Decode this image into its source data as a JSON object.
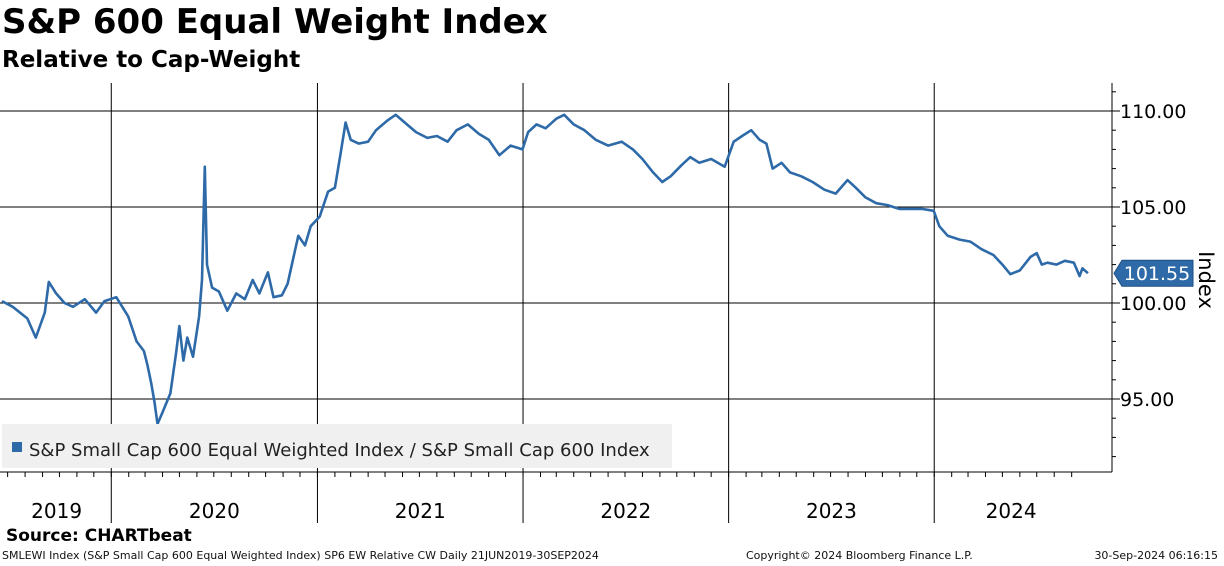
{
  "header": {
    "title": "S&P 600 Equal Weight Index",
    "subtitle": "Relative to Cap-Weight"
  },
  "footer": {
    "source": "Source: CHARTbeat",
    "description": "SMLEWI Index (S&P Small Cap 600 Equal Weighted Index) SP6 EW Relative CW  Daily 21JUN2019-30SEP2024",
    "copyright": "Copyright© 2024 Bloomberg Finance L.P.",
    "timestamp": "30-Sep-2024 06:16:15"
  },
  "colors": {
    "series": "#2e6aa8",
    "label_fill": "#2e6aa8",
    "legend_bg": "#f0f0f0"
  },
  "chart_data": {
    "type": "line",
    "ylabel": "Index",
    "ylim": [
      91,
      111.5
    ],
    "yticks": [
      95,
      100,
      105,
      110
    ],
    "ytick_labels": [
      "95.00",
      "100.00",
      "105.00",
      "110.00"
    ],
    "x_start": "2019-06-21",
    "x_end": "2024-09-30",
    "year_labels": [
      "2019",
      "2020",
      "2021",
      "2022",
      "2023",
      "2024"
    ],
    "grid": true,
    "legend_position": "bottom-left",
    "last_value_label": "101.55",
    "series": [
      {
        "name": "S&P Small Cap 600 Equal Weighted Index / S&P Small Cap 600 Index",
        "points": [
          [
            "2019-06-21",
            100.1
          ],
          [
            "2019-07-10",
            99.8
          ],
          [
            "2019-08-05",
            99.2
          ],
          [
            "2019-08-20",
            98.2
          ],
          [
            "2019-09-05",
            99.5
          ],
          [
            "2019-09-12",
            101.1
          ],
          [
            "2019-09-25",
            100.5
          ],
          [
            "2019-10-10",
            100.0
          ],
          [
            "2019-10-25",
            99.8
          ],
          [
            "2019-11-15",
            100.2
          ],
          [
            "2019-12-05",
            99.5
          ],
          [
            "2019-12-20",
            100.1
          ],
          [
            "2020-01-10",
            100.3
          ],
          [
            "2020-01-31",
            99.3
          ],
          [
            "2020-02-15",
            98.0
          ],
          [
            "2020-02-28",
            97.5
          ],
          [
            "2020-03-05",
            96.8
          ],
          [
            "2020-03-12",
            95.8
          ],
          [
            "2020-03-18",
            94.8
          ],
          [
            "2020-03-23",
            93.7
          ],
          [
            "2020-04-01",
            94.3
          ],
          [
            "2020-04-15",
            95.3
          ],
          [
            "2020-04-25",
            97.4
          ],
          [
            "2020-05-01",
            98.8
          ],
          [
            "2020-05-08",
            97.0
          ],
          [
            "2020-05-15",
            98.2
          ],
          [
            "2020-05-25",
            97.2
          ],
          [
            "2020-06-05",
            99.3
          ],
          [
            "2020-06-10",
            101.2
          ],
          [
            "2020-06-15",
            107.1
          ],
          [
            "2020-06-19",
            102.0
          ],
          [
            "2020-06-28",
            100.8
          ],
          [
            "2020-07-10",
            100.6
          ],
          [
            "2020-07-25",
            99.6
          ],
          [
            "2020-08-10",
            100.5
          ],
          [
            "2020-08-25",
            100.2
          ],
          [
            "2020-09-08",
            101.2
          ],
          [
            "2020-09-20",
            100.5
          ],
          [
            "2020-10-05",
            101.6
          ],
          [
            "2020-10-15",
            100.3
          ],
          [
            "2020-10-30",
            100.4
          ],
          [
            "2020-11-09",
            101.0
          ],
          [
            "2020-11-18",
            102.2
          ],
          [
            "2020-11-28",
            103.5
          ],
          [
            "2020-12-10",
            103.0
          ],
          [
            "2020-12-20",
            104.0
          ],
          [
            "2021-01-05",
            104.5
          ],
          [
            "2021-01-20",
            105.8
          ],
          [
            "2021-02-01",
            106.0
          ],
          [
            "2021-02-10",
            107.6
          ],
          [
            "2021-02-20",
            109.4
          ],
          [
            "2021-03-01",
            108.5
          ],
          [
            "2021-03-15",
            108.3
          ],
          [
            "2021-04-01",
            108.4
          ],
          [
            "2021-04-15",
            109.0
          ],
          [
            "2021-05-05",
            109.5
          ],
          [
            "2021-05-20",
            109.8
          ],
          [
            "2021-06-05",
            109.4
          ],
          [
            "2021-06-25",
            108.9
          ],
          [
            "2021-07-15",
            108.6
          ],
          [
            "2021-08-01",
            108.7
          ],
          [
            "2021-08-20",
            108.4
          ],
          [
            "2021-09-05",
            109.0
          ],
          [
            "2021-09-25",
            109.3
          ],
          [
            "2021-10-15",
            108.8
          ],
          [
            "2021-11-01",
            108.5
          ],
          [
            "2021-11-20",
            107.7
          ],
          [
            "2021-12-10",
            108.2
          ],
          [
            "2021-12-31",
            108.0
          ],
          [
            "2022-01-10",
            108.9
          ],
          [
            "2022-01-25",
            109.3
          ],
          [
            "2022-02-10",
            109.1
          ],
          [
            "2022-03-01",
            109.6
          ],
          [
            "2022-03-15",
            109.8
          ],
          [
            "2022-04-01",
            109.3
          ],
          [
            "2022-04-20",
            109.0
          ],
          [
            "2022-05-10",
            108.5
          ],
          [
            "2022-06-01",
            108.2
          ],
          [
            "2022-06-25",
            108.4
          ],
          [
            "2022-07-15",
            108.0
          ],
          [
            "2022-08-01",
            107.5
          ],
          [
            "2022-08-20",
            106.8
          ],
          [
            "2022-09-05",
            106.3
          ],
          [
            "2022-09-20",
            106.6
          ],
          [
            "2022-10-10",
            107.2
          ],
          [
            "2022-10-25",
            107.6
          ],
          [
            "2022-11-10",
            107.3
          ],
          [
            "2022-12-01",
            107.5
          ],
          [
            "2022-12-25",
            107.1
          ],
          [
            "2023-01-10",
            108.4
          ],
          [
            "2023-01-25",
            108.7
          ],
          [
            "2023-02-10",
            109.0
          ],
          [
            "2023-02-25",
            108.5
          ],
          [
            "2023-03-09",
            108.3
          ],
          [
            "2023-03-20",
            107.0
          ],
          [
            "2023-04-05",
            107.3
          ],
          [
            "2023-04-20",
            106.8
          ],
          [
            "2023-05-10",
            106.6
          ],
          [
            "2023-05-30",
            106.3
          ],
          [
            "2023-06-20",
            105.9
          ],
          [
            "2023-07-10",
            105.7
          ],
          [
            "2023-07-31",
            106.4
          ],
          [
            "2023-08-15",
            106.0
          ],
          [
            "2023-09-01",
            105.5
          ],
          [
            "2023-09-20",
            105.2
          ],
          [
            "2023-10-10",
            105.1
          ],
          [
            "2023-10-31",
            104.9
          ],
          [
            "2023-11-20",
            104.9
          ],
          [
            "2023-12-10",
            104.9
          ],
          [
            "2023-12-31",
            104.8
          ],
          [
            "2024-01-10",
            104.0
          ],
          [
            "2024-01-25",
            103.5
          ],
          [
            "2024-02-15",
            103.3
          ],
          [
            "2024-03-05",
            103.2
          ],
          [
            "2024-03-25",
            102.8
          ],
          [
            "2024-04-15",
            102.5
          ],
          [
            "2024-05-01",
            102.0
          ],
          [
            "2024-05-15",
            101.5
          ],
          [
            "2024-06-01",
            101.7
          ],
          [
            "2024-06-20",
            102.4
          ],
          [
            "2024-07-01",
            102.6
          ],
          [
            "2024-07-10",
            102.0
          ],
          [
            "2024-07-20",
            102.1
          ],
          [
            "2024-08-05",
            102.0
          ],
          [
            "2024-08-20",
            102.2
          ],
          [
            "2024-09-05",
            102.1
          ],
          [
            "2024-09-15",
            101.4
          ],
          [
            "2024-09-20",
            101.8
          ],
          [
            "2024-09-30",
            101.55
          ]
        ]
      }
    ]
  }
}
